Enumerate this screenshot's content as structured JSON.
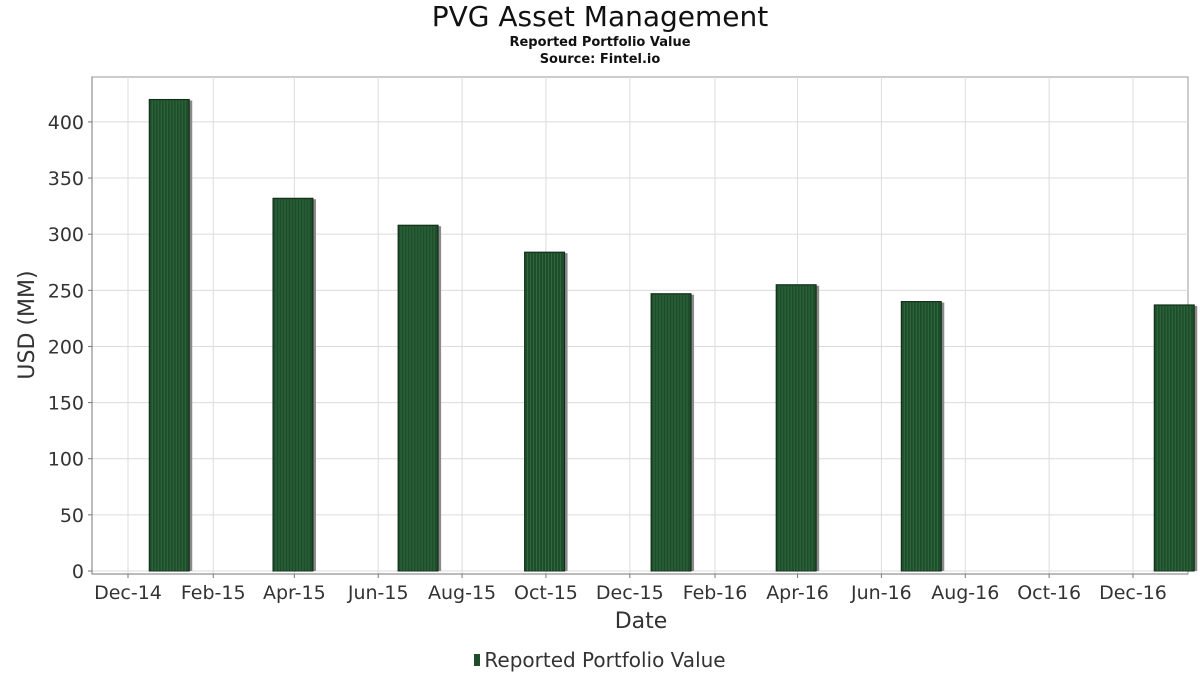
{
  "chart_data": {
    "type": "bar",
    "title": "PVG Asset Management",
    "subtitle": "Reported Portfolio Value",
    "source": "Source: Fintel.io",
    "xlabel": "Date",
    "ylabel": "USD (MM)",
    "ylim": [
      0,
      440
    ],
    "yticks": [
      0,
      50,
      100,
      150,
      200,
      250,
      300,
      350,
      400
    ],
    "xlim": [
      "2014-11-07",
      "2017-01-10"
    ],
    "xtick_labels": [
      {
        "label": "Dec-14",
        "date": "2014-12-01"
      },
      {
        "label": "Feb-15",
        "date": "2015-02-01"
      },
      {
        "label": "Apr-15",
        "date": "2015-04-01"
      },
      {
        "label": "Jun-15",
        "date": "2015-06-01"
      },
      {
        "label": "Aug-15",
        "date": "2015-08-01"
      },
      {
        "label": "Oct-15",
        "date": "2015-10-01"
      },
      {
        "label": "Dec-15",
        "date": "2015-12-01"
      },
      {
        "label": "Feb-16",
        "date": "2016-02-01"
      },
      {
        "label": "Apr-16",
        "date": "2016-04-01"
      },
      {
        "label": "Jun-16",
        "date": "2016-06-01"
      },
      {
        "label": "Aug-16",
        "date": "2016-08-01"
      },
      {
        "label": "Oct-16",
        "date": "2016-10-01"
      },
      {
        "label": "Dec-16",
        "date": "2016-12-01"
      }
    ],
    "series": [
      {
        "name": "Reported Portfolio Value",
        "color": "#1e4d2b",
        "points": [
          {
            "date": "2014-12-31",
            "value": 420
          },
          {
            "date": "2015-03-31",
            "value": 332
          },
          {
            "date": "2015-06-30",
            "value": 308
          },
          {
            "date": "2015-09-30",
            "value": 284
          },
          {
            "date": "2015-12-31",
            "value": 247
          },
          {
            "date": "2016-03-31",
            "value": 255
          },
          {
            "date": "2016-06-30",
            "value": 240
          },
          {
            "date": "2016-12-31",
            "value": 237
          }
        ]
      }
    ],
    "grid": true,
    "legend_position": "bottom-center"
  },
  "legend": {
    "label": "Reported Portfolio Value"
  }
}
